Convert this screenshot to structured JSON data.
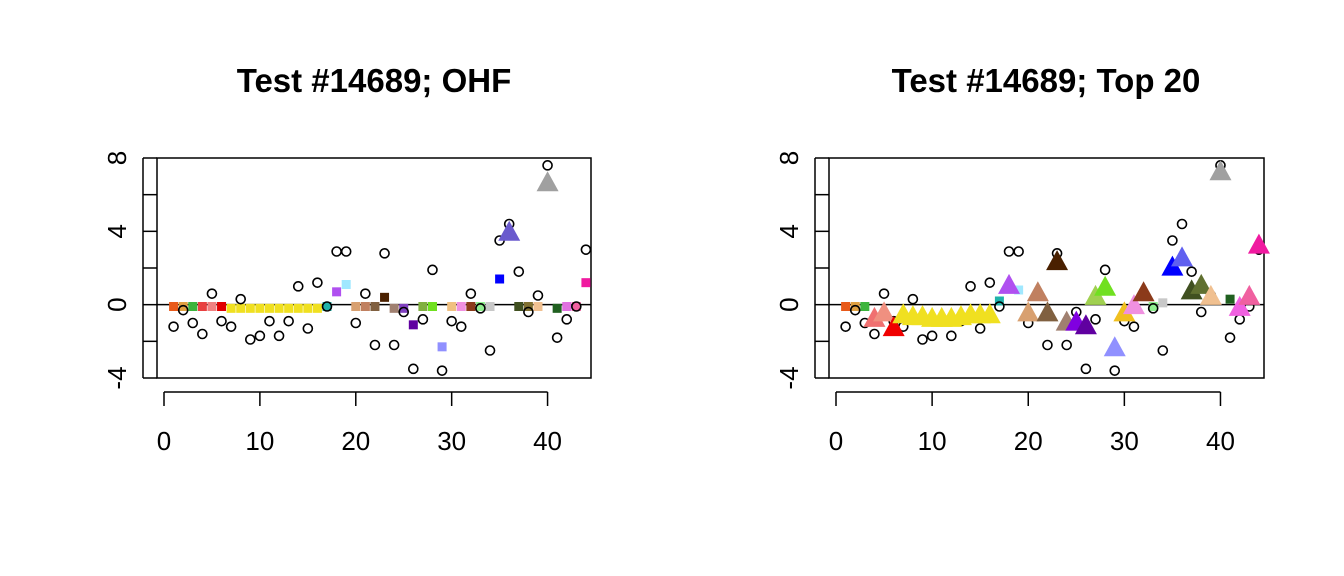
{
  "chart_data": [
    {
      "type": "scatter",
      "title": "Test #14689; OHF",
      "xlabel": "",
      "ylabel": "",
      "xlim": [
        0,
        45
      ],
      "ylim": [
        -4,
        8
      ],
      "x_ticks": [
        0,
        10,
        20,
        30,
        40
      ],
      "y_ticks": [
        -4,
        0,
        4,
        8
      ],
      "x_tick_labels": [
        "0",
        "10",
        "20",
        "30",
        "40"
      ],
      "y_tick_labels": [
        "-4",
        "0",
        "4",
        "8"
      ],
      "hline": 0,
      "grid": false,
      "series": [
        {
          "marker": "open-circle",
          "color": "#000000",
          "x": [
            1,
            2,
            3,
            4,
            5,
            6,
            7,
            8,
            9,
            10,
            11,
            12,
            13,
            14,
            15,
            16,
            17,
            18,
            19,
            20,
            21,
            22,
            23,
            24,
            25,
            26,
            27,
            28,
            29,
            30,
            31,
            32,
            33,
            34,
            35,
            36,
            37,
            38,
            39,
            40,
            41,
            42,
            43,
            44
          ],
          "y": [
            -1.2,
            -0.3,
            -1.0,
            -1.6,
            0.6,
            -0.9,
            -1.2,
            0.3,
            -1.9,
            -1.7,
            -0.9,
            -1.7,
            -0.9,
            1.0,
            -1.3,
            1.2,
            -0.1,
            2.9,
            2.9,
            -1.0,
            0.6,
            -2.2,
            2.8,
            -2.2,
            -0.4,
            -3.5,
            -0.8,
            1.9,
            -3.6,
            -0.9,
            -1.2,
            0.6,
            -0.2,
            -2.5,
            3.5,
            4.4,
            1.8,
            -0.4,
            0.5,
            7.6,
            -1.8,
            -0.8,
            -0.1,
            3.0
          ]
        },
        {
          "marker": "square",
          "x": [
            1,
            2,
            3,
            4,
            5,
            6,
            7,
            8,
            9,
            10,
            11,
            12,
            13,
            14,
            15,
            16,
            17,
            18,
            19,
            20,
            21,
            22,
            23,
            24,
            25,
            26,
            27,
            28,
            29,
            30,
            31,
            32,
            33,
            34,
            35,
            37,
            38,
            39,
            41,
            42,
            43,
            44
          ],
          "y": [
            -0.1,
            -0.1,
            -0.1,
            -0.1,
            -0.1,
            -0.1,
            -0.2,
            -0.2,
            -0.2,
            -0.2,
            -0.2,
            -0.2,
            -0.2,
            -0.2,
            -0.2,
            -0.2,
            -0.1,
            0.7,
            1.1,
            -0.1,
            -0.1,
            -0.1,
            0.4,
            -0.2,
            -0.2,
            -1.1,
            -0.1,
            -0.1,
            -2.3,
            -0.1,
            -0.1,
            -0.1,
            -0.1,
            -0.1,
            1.4,
            -0.1,
            -0.1,
            -0.1,
            -0.2,
            -0.1,
            -0.1,
            1.2
          ],
          "colors": [
            "#e85a1a",
            "#e0a040",
            "#3cb43c",
            "#e84040",
            "#f08080",
            "#e00000",
            "#f0e020",
            "#f0e020",
            "#f0e020",
            "#f0e020",
            "#f0e020",
            "#f0e020",
            "#f0e020",
            "#f0e020",
            "#f0e020",
            "#f0e020",
            "#20b2aa",
            "#b050f0",
            "#a0e8ff",
            "#d8a070",
            "#c08060",
            "#806040",
            "#4a2000",
            "#a08070",
            "#8040c0",
            "#6000a0",
            "#80b040",
            "#70e020",
            "#9090ff",
            "#f0c080",
            "#f090e0",
            "#8b3a1a",
            "#90ee90",
            "#c8c8c8",
            "#0000ff",
            "#405020",
            "#807030",
            "#f0c090",
            "#206020",
            "#e070e0",
            "#f060a0",
            "#f01aa0"
          ]
        },
        {
          "marker": "triangle",
          "x": [
            36,
            40
          ],
          "y": [
            3.9,
            6.6
          ],
          "colors": [
            "#6a5acd",
            "#a0a0a0"
          ]
        }
      ]
    },
    {
      "type": "scatter",
      "title": "Test #14689; Top 20",
      "xlabel": "",
      "ylabel": "",
      "xlim": [
        0,
        45
      ],
      "ylim": [
        -4,
        8
      ],
      "x_ticks": [
        0,
        10,
        20,
        30,
        40
      ],
      "y_ticks": [
        -4,
        0,
        4,
        8
      ],
      "x_tick_labels": [
        "0",
        "10",
        "20",
        "30",
        "40"
      ],
      "y_tick_labels": [
        "-4",
        "0",
        "4",
        "8"
      ],
      "hline": 0,
      "grid": false,
      "series": [
        {
          "marker": "open-circle",
          "color": "#000000",
          "x": [
            1,
            2,
            3,
            4,
            5,
            6,
            7,
            8,
            9,
            10,
            11,
            12,
            13,
            14,
            15,
            16,
            17,
            18,
            19,
            20,
            21,
            22,
            23,
            24,
            25,
            26,
            27,
            28,
            29,
            30,
            31,
            32,
            33,
            34,
            35,
            36,
            37,
            38,
            39,
            40,
            41,
            42,
            43,
            44
          ],
          "y": [
            -1.2,
            -0.3,
            -1.0,
            -1.6,
            0.6,
            -0.9,
            -1.2,
            0.3,
            -1.9,
            -1.7,
            -0.9,
            -1.7,
            -0.9,
            1.0,
            -1.3,
            1.2,
            -0.1,
            2.9,
            2.9,
            -1.0,
            0.6,
            -2.2,
            2.8,
            -2.2,
            -0.4,
            -3.5,
            -0.8,
            1.9,
            -3.6,
            -0.9,
            -1.2,
            0.6,
            -0.2,
            -2.5,
            3.5,
            4.4,
            1.8,
            -0.4,
            0.5,
            7.6,
            -1.8,
            -0.8,
            -0.1,
            3.0
          ]
        },
        {
          "marker": "square",
          "x": [
            1,
            2,
            3,
            17,
            19,
            33,
            34,
            41
          ],
          "y": [
            -0.1,
            -0.1,
            -0.1,
            0.2,
            0.8,
            -0.1,
            0.1,
            0.3
          ],
          "colors": [
            "#e85a1a",
            "#e0a040",
            "#3cb43c",
            "#20b2aa",
            "#a0e8ff",
            "#90ee90",
            "#c8c8c8",
            "#206020"
          ]
        },
        {
          "marker": "triangle",
          "x": [
            4,
            5,
            6,
            7,
            8,
            9,
            10,
            11,
            12,
            13,
            14,
            15,
            16,
            18,
            20,
            21,
            22,
            23,
            24,
            25,
            26,
            27,
            28,
            29,
            30,
            31,
            32,
            35,
            36,
            37,
            38,
            39,
            40,
            42,
            43,
            44
          ],
          "y": [
            -0.8,
            -0.5,
            -1.3,
            -0.6,
            -0.7,
            -0.7,
            -0.8,
            -0.8,
            -0.8,
            -0.7,
            -0.6,
            -0.6,
            -0.6,
            1.0,
            -0.5,
            0.6,
            -0.5,
            2.3,
            -1.0,
            -1.0,
            -1.2,
            0.4,
            0.9,
            -2.4,
            -0.5,
            -0.1,
            0.6,
            2.0,
            2.5,
            0.7,
            1.0,
            0.4,
            7.2,
            -0.2,
            0.4,
            3.2
          ],
          "colors": [
            "#f07070",
            "#f09080",
            "#f00000",
            "#f0e020",
            "#f0e020",
            "#f0e020",
            "#f0e020",
            "#f0e020",
            "#f0e020",
            "#f0e020",
            "#f0e020",
            "#f0e020",
            "#f0e020",
            "#b050f0",
            "#d8a070",
            "#c08060",
            "#806040",
            "#4a2000",
            "#a08070",
            "#8000e0",
            "#6000a0",
            "#a0d050",
            "#70e020",
            "#9090ff",
            "#f0c020",
            "#f090e0",
            "#8b3a1a",
            "#0000ff",
            "#6060f0",
            "#405020",
            "#607030",
            "#f0c090",
            "#a0a0a0",
            "#f060e0",
            "#f060a0",
            "#f01aa0"
          ]
        }
      ]
    }
  ]
}
